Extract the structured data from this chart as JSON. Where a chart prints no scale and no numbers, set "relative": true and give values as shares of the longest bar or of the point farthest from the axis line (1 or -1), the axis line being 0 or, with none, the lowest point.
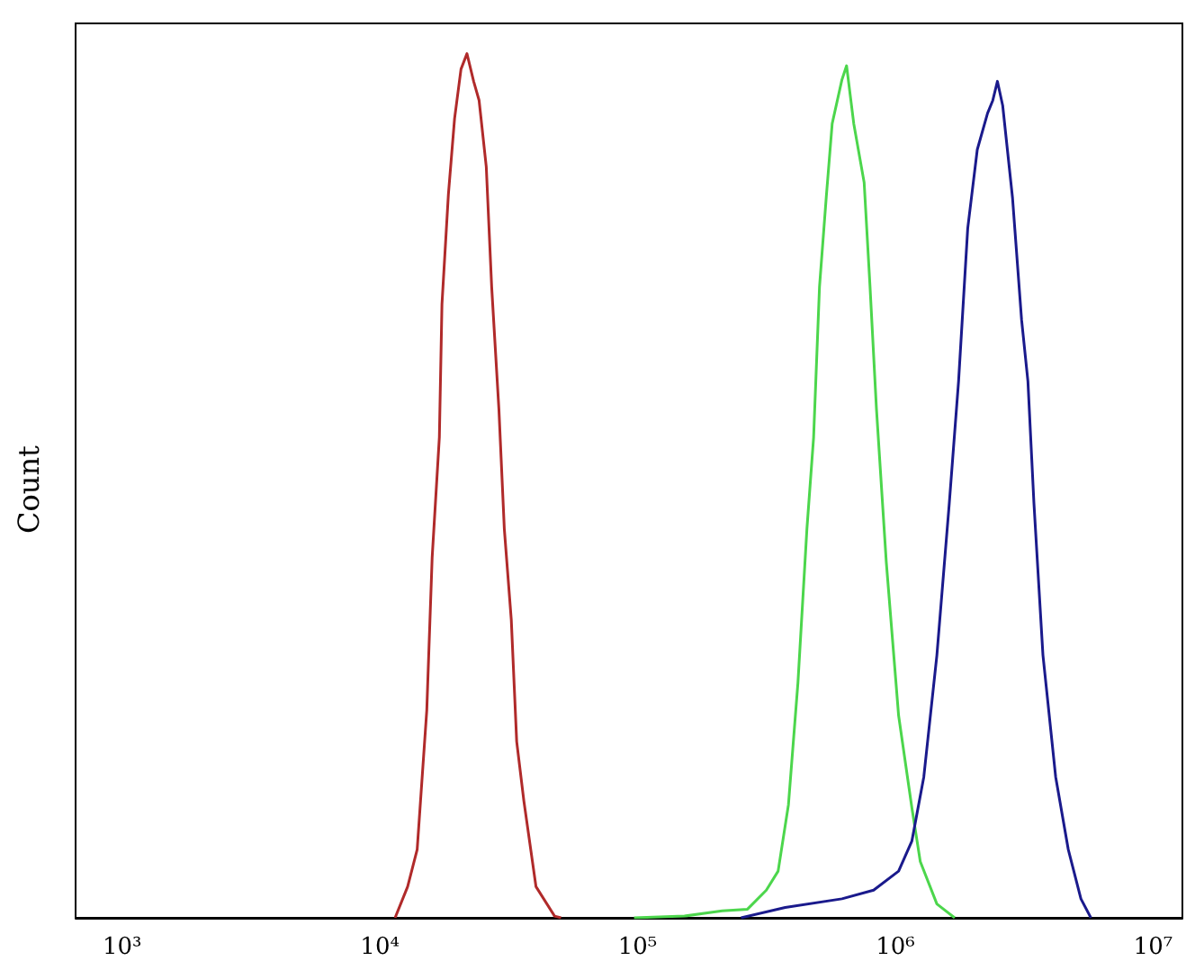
{
  "chart_data": {
    "type": "line",
    "ylabel": "Count",
    "relative": true,
    "log": "x",
    "grid": false,
    "marker": "none",
    "line_style": "solid",
    "xlim": [
      660,
      13000000
    ],
    "xticks": [
      {
        "value": 1000,
        "label": "10³"
      },
      {
        "value": 10000,
        "label": "10⁴"
      },
      {
        "value": 100000,
        "label": "10⁵"
      },
      {
        "value": 1000000,
        "label": "10⁶"
      },
      {
        "value": 10000000,
        "label": "10⁷"
      }
    ],
    "series": [
      {
        "color": "#b02a2a",
        "x": [
          11460,
          12820,
          13960,
          15210,
          15960,
          17020,
          17420,
          18450,
          19500,
          20650,
          21780,
          23120,
          24270,
          25880,
          27160,
          28970,
          30410,
          32360,
          33960,
          36220,
          40360,
          47640,
          50470
        ],
        "values": [
          0,
          0.036,
          0.079,
          0.24,
          0.417,
          0.556,
          0.71,
          0.837,
          0.925,
          0.982,
          1,
          0.968,
          0.946,
          0.869,
          0.73,
          0.589,
          0.45,
          0.345,
          0.204,
          0.135,
          0.036,
          0.002,
          0
        ]
      },
      {
        "color": "#4cd64c",
        "x": [
          96900,
          152000,
          213000,
          267000,
          316000,
          351000,
          385000,
          419000,
          454000,
          482000,
          508000,
          540000,
          569000,
          621000,
          647000,
          690000,
          757000,
          798000,
          845000,
          923000,
          1030000,
          1160000,
          1250000,
          1450000,
          1700000
        ],
        "values": [
          0,
          0.002,
          0.008,
          0.01,
          0.032,
          0.054,
          0.131,
          0.272,
          0.45,
          0.556,
          0.73,
          0.835,
          0.919,
          0.97,
          0.986,
          0.919,
          0.851,
          0.73,
          0.589,
          0.411,
          0.234,
          0.127,
          0.065,
          0.016,
          0
        ]
      },
      {
        "color": "#1a1a8c",
        "x": [
          252000,
          374000,
          621000,
          824000,
          1030000,
          1160000,
          1290000,
          1450000,
          1620000,
          1760000,
          1910000,
          2080000,
          2280000,
          2390000,
          2490000,
          2610000,
          2850000,
          3090000,
          3270000,
          3450000,
          3740000,
          4190000,
          4690000,
          5250000,
          5740000
        ],
        "values": [
          0,
          0.012,
          0.022,
          0.032,
          0.054,
          0.089,
          0.163,
          0.304,
          0.48,
          0.621,
          0.798,
          0.889,
          0.931,
          0.946,
          0.968,
          0.94,
          0.833,
          0.692,
          0.621,
          0.48,
          0.304,
          0.163,
          0.079,
          0.022,
          0
        ]
      }
    ]
  }
}
